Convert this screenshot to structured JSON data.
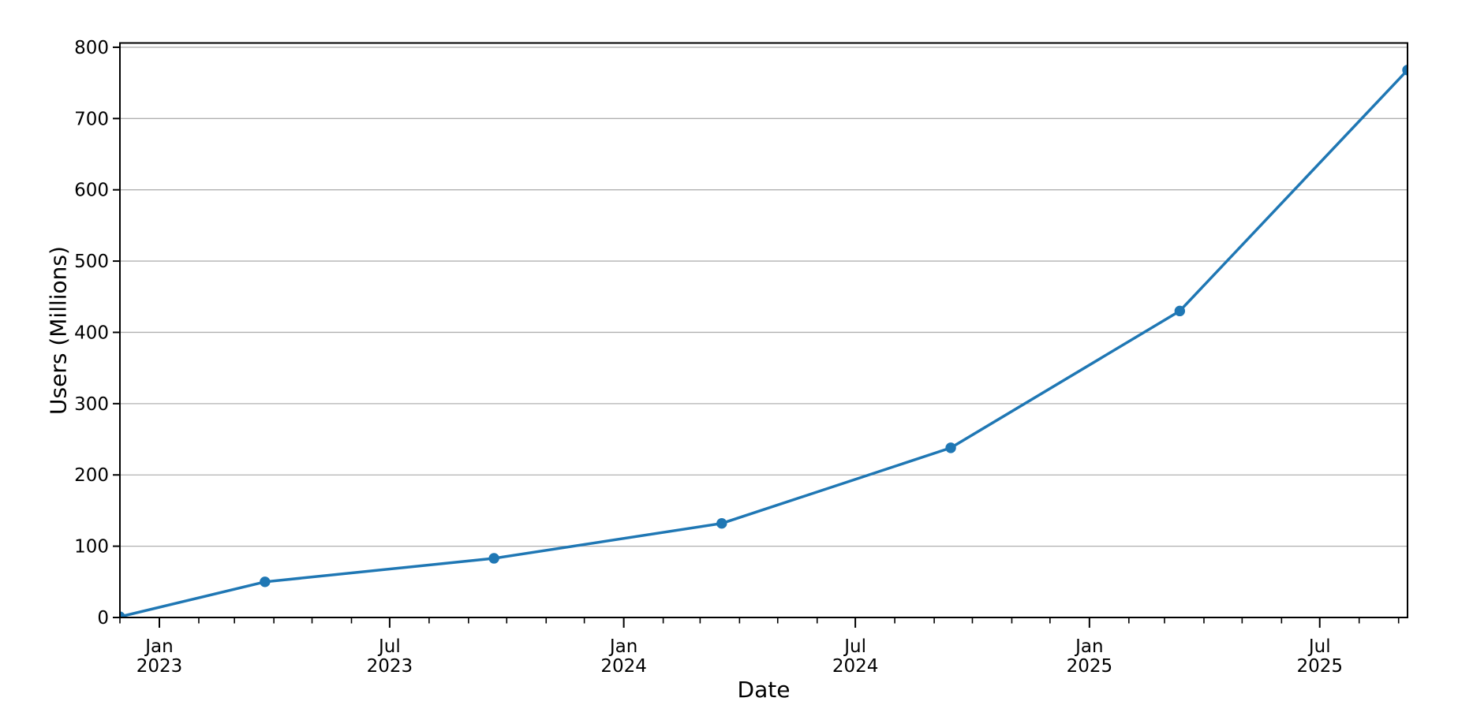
{
  "chart_data": {
    "type": "line",
    "title": "",
    "xlabel": "Date",
    "ylabel": "Users (Millions)",
    "background": "#ffffff",
    "axis_color": "#000000",
    "grid": "horizontal",
    "grid_color": "#b0b0b0",
    "legend": "none",
    "xlim": [
      "2022-12-01",
      "2025-09-08"
    ],
    "ylim": [
      0,
      806
    ],
    "yticks": [
      0,
      100,
      200,
      300,
      400,
      500,
      600,
      700,
      800
    ],
    "xticks": [
      {
        "date": "2023-01-01",
        "line1": "Jan",
        "line2": "2023"
      },
      {
        "date": "2023-07-01",
        "line1": "Jul",
        "line2": "2023"
      },
      {
        "date": "2024-01-01",
        "line1": "Jan",
        "line2": "2024"
      },
      {
        "date": "2024-07-01",
        "line1": "Jul",
        "line2": "2024"
      },
      {
        "date": "2025-01-01",
        "line1": "Jan",
        "line2": "2025"
      },
      {
        "date": "2025-07-01",
        "line1": "Jul",
        "line2": "2025"
      }
    ],
    "minor_xticks": "monthly",
    "series": [
      {
        "name": "Users",
        "color": "#1f77b4",
        "marker": "circle",
        "points": [
          {
            "date": "2022-12-01",
            "value": 1
          },
          {
            "date": "2023-03-25",
            "value": 50
          },
          {
            "date": "2023-09-21",
            "value": 83
          },
          {
            "date": "2024-03-18",
            "value": 132
          },
          {
            "date": "2024-09-14",
            "value": 238
          },
          {
            "date": "2025-03-13",
            "value": 430
          },
          {
            "date": "2025-09-08",
            "value": 768
          }
        ]
      }
    ]
  }
}
